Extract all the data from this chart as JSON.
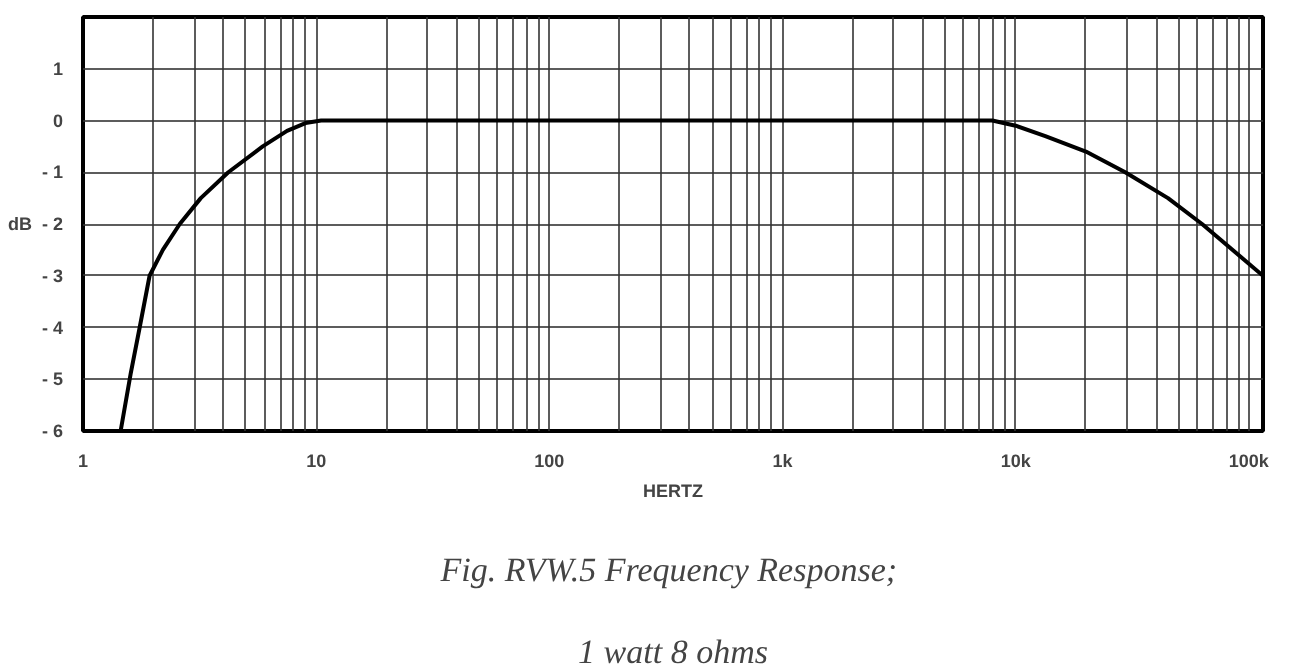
{
  "chart_data": {
    "type": "line",
    "xlabel": "HERTZ",
    "ylabel": "dB",
    "log": "x",
    "grid": true,
    "line_style": "solid",
    "marker": "none",
    "x": [
      1.45,
      1.6,
      1.75,
      1.93,
      2.2,
      2.6,
      3.2,
      4.2,
      5.9,
      7.5,
      9,
      10.5,
      100,
      1000,
      7940,
      10000,
      13400,
      20000,
      29500,
      45000,
      63000,
      115000
    ],
    "series": [
      {
        "color": "#000000",
        "values": [
          -6,
          -4.9,
          -4,
          -3,
          -2.5,
          -2,
          -1.5,
          -1,
          -0.5,
          -0.2,
          -0.05,
          0,
          0,
          0,
          0,
          -0.1,
          -0.3,
          -0.6,
          -1,
          -1.5,
          -2,
          -3
        ]
      }
    ],
    "xlim": [
      1,
      115000
    ],
    "ylim": [
      -6,
      2
    ],
    "xticks": [
      {
        "value": 1,
        "label": "1"
      },
      {
        "value": 2,
        "label": null
      },
      {
        "value": 3,
        "label": null
      },
      {
        "value": 4,
        "label": null
      },
      {
        "value": 5,
        "label": null
      },
      {
        "value": 6,
        "label": null
      },
      {
        "value": 7,
        "label": null
      },
      {
        "value": 8,
        "label": null
      },
      {
        "value": 9,
        "label": null
      },
      {
        "value": 10,
        "label": "10"
      },
      {
        "value": 20,
        "label": null
      },
      {
        "value": 30,
        "label": null
      },
      {
        "value": 40,
        "label": null
      },
      {
        "value": 50,
        "label": null
      },
      {
        "value": 60,
        "label": null
      },
      {
        "value": 70,
        "label": null
      },
      {
        "value": 80,
        "label": null
      },
      {
        "value": 90,
        "label": null
      },
      {
        "value": 100,
        "label": "100"
      },
      {
        "value": 200,
        "label": null
      },
      {
        "value": 300,
        "label": null
      },
      {
        "value": 400,
        "label": null
      },
      {
        "value": 500,
        "label": null
      },
      {
        "value": 600,
        "label": null
      },
      {
        "value": 700,
        "label": null
      },
      {
        "value": 800,
        "label": null
      },
      {
        "value": 900,
        "label": null
      },
      {
        "value": 1000,
        "label": "1k"
      },
      {
        "value": 2000,
        "label": null
      },
      {
        "value": 3000,
        "label": null
      },
      {
        "value": 4000,
        "label": null
      },
      {
        "value": 5000,
        "label": null
      },
      {
        "value": 6000,
        "label": null
      },
      {
        "value": 7000,
        "label": null
      },
      {
        "value": 8000,
        "label": null
      },
      {
        "value": 9000,
        "label": null
      },
      {
        "value": 10000,
        "label": "10k"
      },
      {
        "value": 20000,
        "label": null
      },
      {
        "value": 30000,
        "label": null
      },
      {
        "value": 40000,
        "label": null
      },
      {
        "value": 50000,
        "label": null
      },
      {
        "value": 60000,
        "label": null
      },
      {
        "value": 70000,
        "label": null
      },
      {
        "value": 80000,
        "label": null
      },
      {
        "value": 90000,
        "label": null
      },
      {
        "value": 100000,
        "label": "100k"
      }
    ],
    "yticks": [
      {
        "value": -6,
        "label": "- 6"
      },
      {
        "value": -5,
        "label": "- 5"
      },
      {
        "value": -4,
        "label": "- 4"
      },
      {
        "value": -3,
        "label": "- 3"
      },
      {
        "value": -2,
        "label": "- 2"
      },
      {
        "value": -1,
        "label": "- 1"
      },
      0,
      1
    ],
    "annotations": [
      "Fig. RVW.5  Frequency Response;",
      "1 watt 8 ohms"
    ]
  }
}
